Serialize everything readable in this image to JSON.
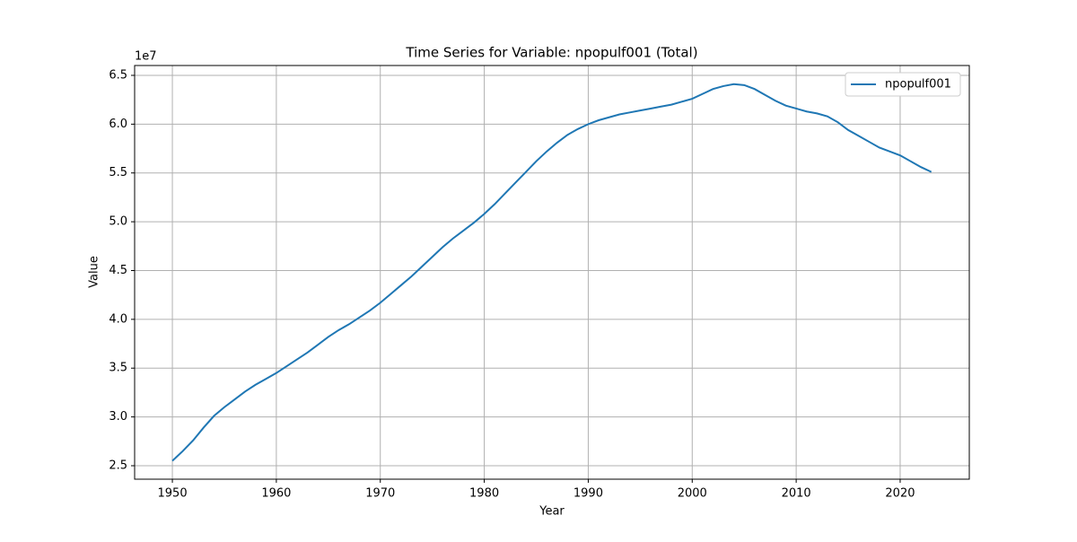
{
  "chart_data": {
    "type": "line",
    "title": "Time Series for Variable: npopulf001 (Total)",
    "x_label": "Year",
    "y_label": "Value",
    "y_offset_label": "1e7",
    "x": [
      1950,
      1951,
      1952,
      1953,
      1954,
      1955,
      1956,
      1957,
      1958,
      1959,
      1960,
      1961,
      1962,
      1963,
      1964,
      1965,
      1966,
      1967,
      1968,
      1969,
      1970,
      1971,
      1972,
      1973,
      1974,
      1975,
      1976,
      1977,
      1978,
      1979,
      1980,
      1981,
      1982,
      1983,
      1984,
      1985,
      1986,
      1987,
      1988,
      1989,
      1990,
      1991,
      1992,
      1993,
      1994,
      1995,
      1996,
      1997,
      1998,
      1999,
      2000,
      2001,
      2002,
      2003,
      2004,
      2005,
      2006,
      2007,
      2008,
      2009,
      2010,
      2011,
      2012,
      2013,
      2014,
      2015,
      2016,
      2017,
      2018,
      2019,
      2020,
      2021,
      2022,
      2023
    ],
    "series": [
      {
        "name": "npopulf001",
        "color": "#1f77b4",
        "values": [
          25500000,
          26500000,
          27600000,
          28900000,
          30100000,
          31000000,
          31800000,
          32600000,
          33300000,
          33900000,
          34500000,
          35200000,
          35900000,
          36600000,
          37400000,
          38200000,
          38900000,
          39500000,
          40200000,
          40900000,
          41700000,
          42600000,
          43500000,
          44400000,
          45400000,
          46400000,
          47400000,
          48300000,
          49100000,
          49900000,
          50800000,
          51800000,
          52900000,
          54000000,
          55100000,
          56200000,
          57200000,
          58100000,
          58900000,
          59500000,
          60000000,
          60400000,
          60700000,
          61000000,
          61200000,
          61400000,
          61600000,
          61800000,
          62000000,
          62300000,
          62600000,
          63100000,
          63600000,
          63900000,
          64100000,
          64000000,
          63600000,
          63000000,
          62400000,
          61900000,
          61600000,
          61300000,
          61100000,
          60800000,
          60200000,
          59400000,
          58800000,
          58200000,
          57600000,
          57200000,
          56800000,
          56200000,
          55600000,
          55100000
        ]
      }
    ],
    "xlim": [
      1946.37,
      2026.65
    ],
    "ylim": [
      23620000,
      66010000
    ],
    "xticks": [
      1950,
      1960,
      1970,
      1980,
      1990,
      2000,
      2010,
      2020
    ],
    "yticks": [
      {
        "value": 25000000,
        "label": "2.5"
      },
      {
        "value": 30000000,
        "label": "3.0"
      },
      {
        "value": 35000000,
        "label": "3.5"
      },
      {
        "value": 40000000,
        "label": "4.0"
      },
      {
        "value": 45000000,
        "label": "4.5"
      },
      {
        "value": 50000000,
        "label": "5.0"
      },
      {
        "value": 55000000,
        "label": "5.5"
      },
      {
        "value": 60000000,
        "label": "6.0"
      },
      {
        "value": 65000000,
        "label": "6.5"
      }
    ],
    "grid": true,
    "legend": "upper right"
  }
}
